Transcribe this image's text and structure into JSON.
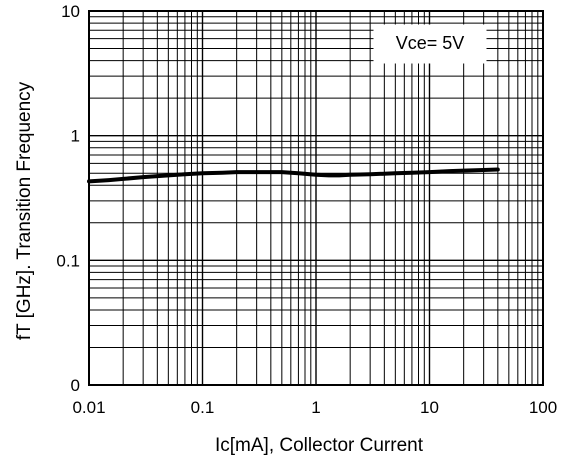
{
  "chart_data": {
    "type": "line",
    "title": "",
    "xlabel": "Ic[mA], Collector Current",
    "ylabel": "fT [GHz]. Transition Frequency",
    "x_scale": "log",
    "y_scale": "log",
    "xlim": [
      0.01,
      100
    ],
    "ylim": [
      0.01,
      10
    ],
    "x_ticks": [
      {
        "value": 0.01,
        "label": "0.01"
      },
      {
        "value": 0.1,
        "label": "0.1"
      },
      {
        "value": 1,
        "label": "1"
      },
      {
        "value": 10,
        "label": "10"
      },
      {
        "value": 100,
        "label": "100"
      }
    ],
    "y_ticks": [
      {
        "value": 0.01,
        "label": "0"
      },
      {
        "value": 0.1,
        "label": "0.1"
      },
      {
        "value": 1,
        "label": "1"
      },
      {
        "value": 10,
        "label": "10"
      }
    ],
    "grid": true,
    "annotation": "Vce= 5V",
    "series": [
      {
        "x": [
          0.01,
          0.015,
          0.02,
          0.03,
          0.05,
          0.07,
          0.1,
          0.15,
          0.2,
          0.3,
          0.5,
          0.7,
          1.0,
          1.3,
          1.6,
          2.0,
          3.0,
          5.0,
          7.0,
          10,
          15,
          20,
          30,
          40
        ],
        "y": [
          0.43,
          0.44,
          0.45,
          0.465,
          0.48,
          0.49,
          0.5,
          0.505,
          0.51,
          0.51,
          0.51,
          0.5,
          0.485,
          0.48,
          0.48,
          0.485,
          0.49,
          0.5,
          0.505,
          0.51,
          0.52,
          0.525,
          0.53,
          0.535
        ]
      }
    ],
    "line_color": "#000000"
  }
}
